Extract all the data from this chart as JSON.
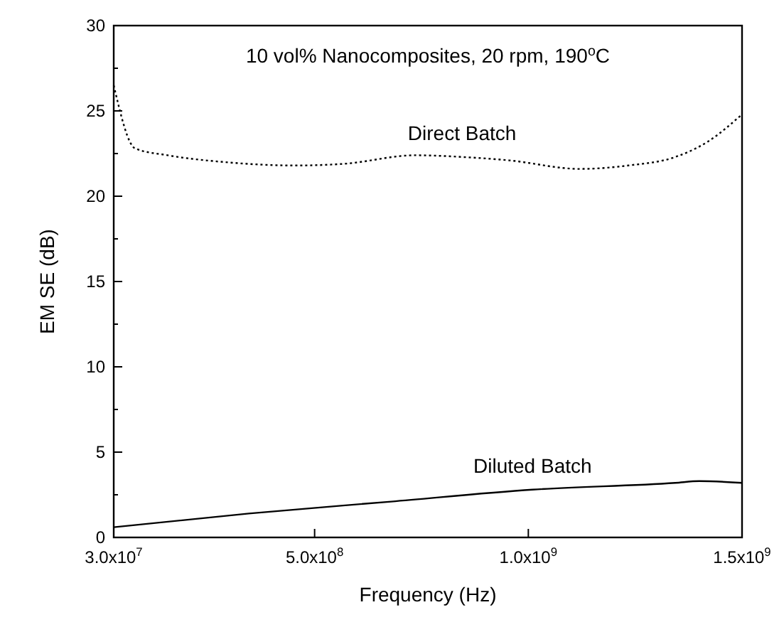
{
  "chart_data": {
    "type": "line",
    "title": "10 vol% Nanocomposites, 20 rpm, 190$^{o}$C",
    "xlabel": "Frequency (Hz)",
    "ylabel": "EM SE (dB)",
    "xlim": [
      30000000,
      1500000000
    ],
    "ylim": [
      0,
      30
    ],
    "xticks": [
      {
        "value": 30000000,
        "label": "3.0x10$^{7}$"
      },
      {
        "value": 500000000,
        "label": "5.0x10$^{8}$"
      },
      {
        "value": 1000000000,
        "label": "1.0x10$^{9}$"
      },
      {
        "value": 1500000000,
        "label": "1.5x10$^{9}$"
      }
    ],
    "yticks": [
      0,
      {
        "value": 2.5,
        "label": null
      },
      5,
      {
        "value": 7.5,
        "label": null
      },
      10,
      {
        "value": 12.5,
        "label": null
      },
      15,
      {
        "value": 17.5,
        "label": null
      },
      20,
      {
        "value": 22.5,
        "label": null
      },
      25,
      {
        "value": 27.5,
        "label": null
      },
      30
    ],
    "grid": false,
    "marker": "none",
    "series": [
      {
        "name": "Direct Batch",
        "color": "#000000",
        "line_style": "dotted",
        "x": [
          30000000,
          80000000,
          156000000,
          289000000,
          456000000,
          569000000,
          736000000,
          845000000,
          955000000,
          1120000000,
          1234000000,
          1344000000,
          1420000000,
          1500000000
        ],
        "values": [
          26.5,
          22.8,
          22.4,
          22.0,
          21.8,
          21.9,
          22.4,
          22.3,
          22.1,
          21.6,
          21.8,
          22.3,
          23.2,
          24.8
        ]
      },
      {
        "name": "Diluted Batch",
        "color": "#000000",
        "line_style": "solid",
        "x": [
          30000000,
          346000000,
          679000000,
          1010000000,
          1344000000,
          1400000000,
          1500000000
        ],
        "values": [
          0.6,
          1.4,
          2.1,
          2.8,
          3.2,
          3.3,
          3.2
        ]
      }
    ]
  }
}
